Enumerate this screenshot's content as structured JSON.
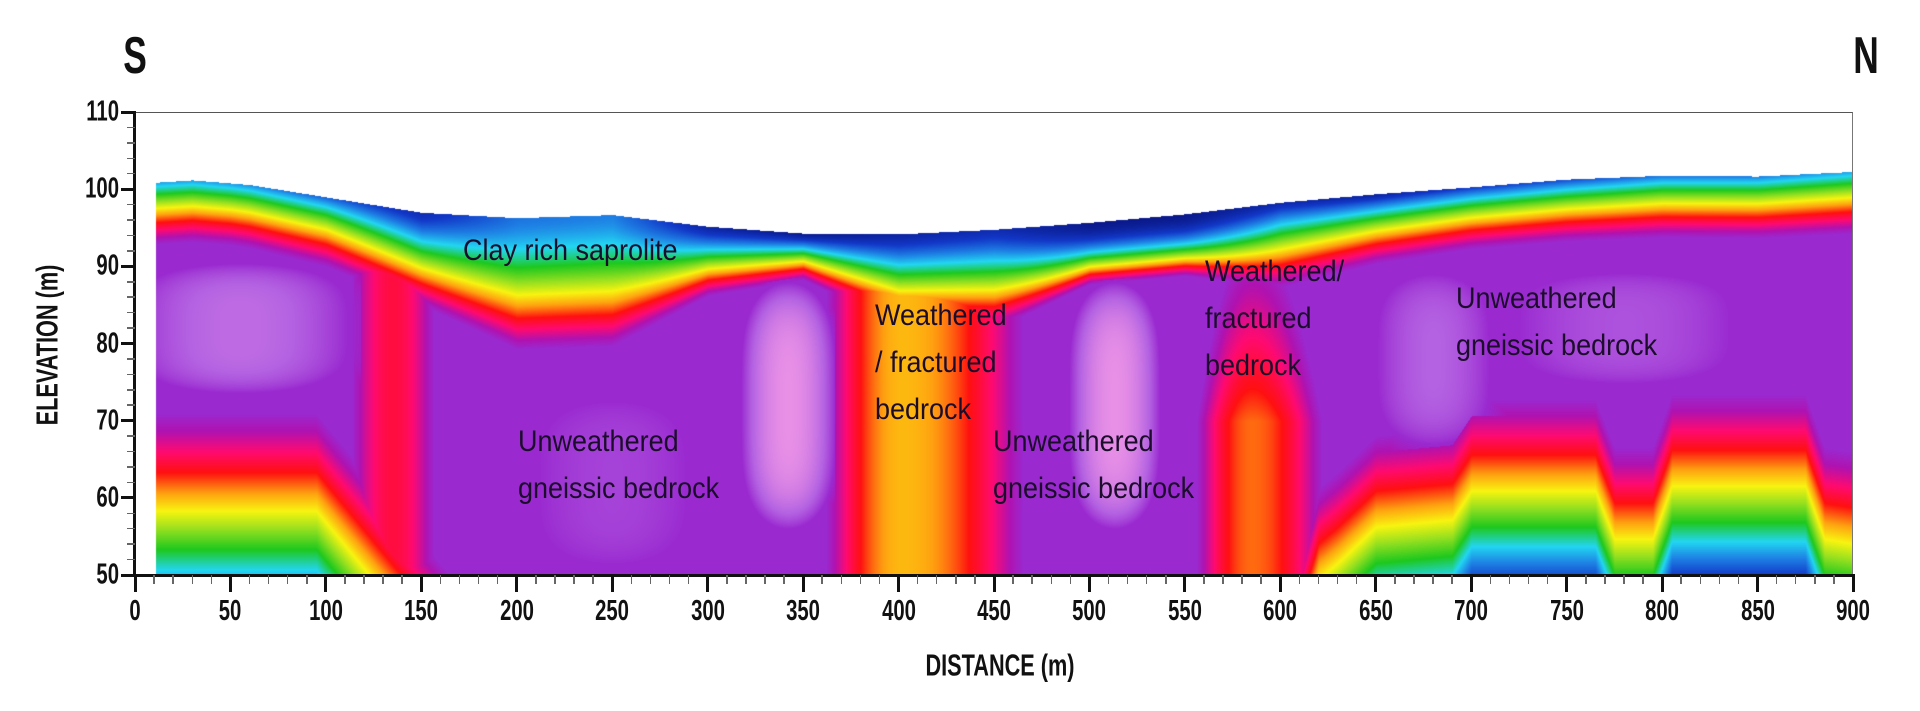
{
  "directions": {
    "left": "S",
    "right": "N"
  },
  "chart_data": {
    "type": "heatmap",
    "xlabel": "DISTANCE (m)",
    "ylabel": "ELEVATION (m)",
    "xlim": [
      0,
      900
    ],
    "ylim": [
      50,
      110
    ],
    "xticks": [
      0,
      50,
      100,
      150,
      200,
      250,
      300,
      350,
      400,
      450,
      500,
      550,
      600,
      650,
      700,
      750,
      800,
      850,
      900
    ],
    "yticks": [
      50,
      60,
      70,
      80,
      90,
      100,
      110
    ],
    "grid": false,
    "topography": {
      "distance": [
        11,
        30,
        60,
        100,
        150,
        200,
        250,
        300,
        350,
        400,
        450,
        500,
        550,
        600,
        650,
        700,
        750,
        800,
        850,
        900
      ],
      "elevation": [
        100.9,
        101.2,
        100.6,
        99.0,
        97.0,
        96.3,
        96.7,
        95.2,
        94.3,
        94.2,
        94.8,
        95.7,
        96.8,
        98.3,
        99.4,
        100.3,
        101.3,
        101.8,
        101.7,
        102.3
      ]
    },
    "colormap": [
      "#0a1a8c",
      "#1238c8",
      "#1e80e4",
      "#22d6f2",
      "#1ec81e",
      "#96e020",
      "#f8f410",
      "#ffa010",
      "#ff1010",
      "#ff0a70",
      "#b012b0",
      "#9a2ad0",
      "#b462e2",
      "#e890e6"
    ],
    "annotations": [
      {
        "lines": [
          "Clay rich saprolite"
        ]
      },
      {
        "lines": [
          "Unweathered",
          "gneissic bedrock"
        ]
      },
      {
        "lines": [
          "Weathered",
          "/ fractured",
          "bedrock"
        ]
      },
      {
        "lines": [
          "Unweathered",
          "gneissic bedrock"
        ]
      },
      {
        "lines": [
          "Weathered/",
          "fractured",
          "bedrock"
        ]
      },
      {
        "lines": [
          "Unweathered",
          "gneissic bedrock"
        ]
      }
    ]
  }
}
